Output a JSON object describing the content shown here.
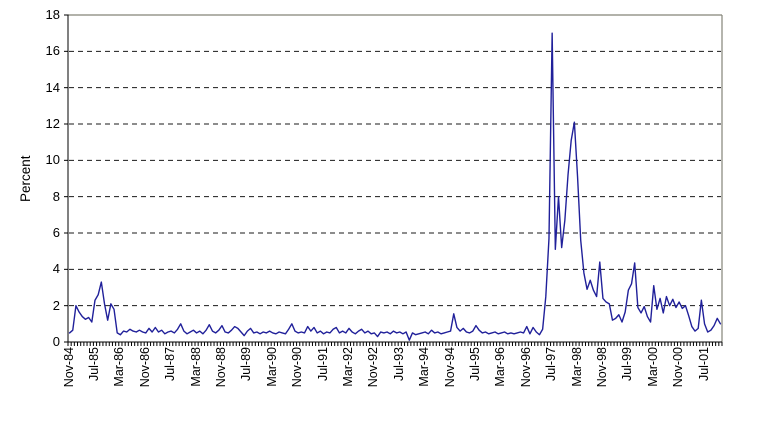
{
  "chart_data": {
    "type": "line",
    "title": "",
    "xlabel": "",
    "ylabel": "Percent",
    "ylim": [
      0,
      18
    ],
    "ytick_step": 2,
    "yticks": [
      0,
      2,
      4,
      6,
      8,
      10,
      12,
      14,
      16,
      18
    ],
    "grid": "horizontal-dashed",
    "legend_position": "none",
    "x_frequency": "monthly",
    "x_start": "Nov-84",
    "x_end": "Dec-01",
    "xtick_every": 8,
    "xtick_labels": [
      "Nov-84",
      "Jul-85",
      "Mar-86",
      "Nov-86",
      "Jul-87",
      "Mar-88",
      "Nov-88",
      "Jul-89",
      "Mar-90",
      "Nov-90",
      "Jul-91",
      "Mar-92",
      "Nov-92",
      "Jul-93",
      "Mar-94",
      "Nov-94",
      "Jul-95",
      "Mar-96",
      "Nov-96",
      "Jul-97",
      "Mar-98",
      "Nov-98",
      "Jul-99",
      "Mar-00",
      "Nov-00",
      "Jul-01"
    ],
    "series": [
      {
        "name": "Percent",
        "color": "#20209a",
        "values": [
          0.5,
          0.65,
          2.0,
          1.65,
          1.4,
          1.25,
          1.35,
          1.1,
          2.3,
          2.6,
          3.3,
          2.1,
          1.2,
          2.1,
          1.8,
          0.5,
          0.4,
          0.6,
          0.55,
          0.7,
          0.6,
          0.55,
          0.65,
          0.55,
          0.5,
          0.75,
          0.55,
          0.8,
          0.55,
          0.65,
          0.45,
          0.55,
          0.6,
          0.5,
          0.7,
          1.0,
          0.6,
          0.45,
          0.55,
          0.65,
          0.5,
          0.6,
          0.45,
          0.65,
          0.95,
          0.6,
          0.5,
          0.65,
          0.9,
          0.55,
          0.5,
          0.65,
          0.85,
          0.75,
          0.55,
          0.35,
          0.6,
          0.75,
          0.5,
          0.55,
          0.45,
          0.55,
          0.5,
          0.6,
          0.5,
          0.45,
          0.55,
          0.5,
          0.45,
          0.7,
          1.0,
          0.6,
          0.5,
          0.55,
          0.5,
          0.85,
          0.6,
          0.8,
          0.5,
          0.6,
          0.45,
          0.55,
          0.5,
          0.7,
          0.8,
          0.5,
          0.6,
          0.5,
          0.75,
          0.55,
          0.45,
          0.6,
          0.7,
          0.5,
          0.6,
          0.45,
          0.5,
          0.3,
          0.55,
          0.5,
          0.55,
          0.45,
          0.6,
          0.5,
          0.55,
          0.45,
          0.55,
          0.1,
          0.5,
          0.4,
          0.45,
          0.5,
          0.55,
          0.45,
          0.65,
          0.5,
          0.55,
          0.45,
          0.5,
          0.55,
          0.6,
          1.55,
          0.8,
          0.6,
          0.75,
          0.55,
          0.5,
          0.6,
          0.9,
          0.65,
          0.5,
          0.55,
          0.45,
          0.5,
          0.55,
          0.45,
          0.5,
          0.55,
          0.45,
          0.5,
          0.45,
          0.5,
          0.55,
          0.5,
          0.85,
          0.45,
          0.8,
          0.55,
          0.4,
          0.7,
          2.5,
          5.7,
          17.0,
          5.1,
          8.0,
          5.2,
          6.7,
          9.2,
          11.1,
          12.1,
          9.1,
          5.6,
          3.8,
          2.9,
          3.4,
          2.85,
          2.5,
          4.4,
          2.4,
          2.2,
          2.1,
          1.2,
          1.3,
          1.5,
          1.1,
          1.65,
          2.85,
          3.2,
          4.35,
          1.9,
          1.6,
          1.95,
          1.4,
          1.1,
          3.1,
          1.8,
          2.4,
          1.6,
          2.5,
          2.0,
          2.35,
          1.9,
          2.2,
          1.85,
          2.0,
          1.45,
          0.85,
          0.6,
          0.75,
          2.3,
          1.0,
          0.55,
          0.65,
          0.9,
          1.3,
          1.0
        ]
      }
    ]
  }
}
